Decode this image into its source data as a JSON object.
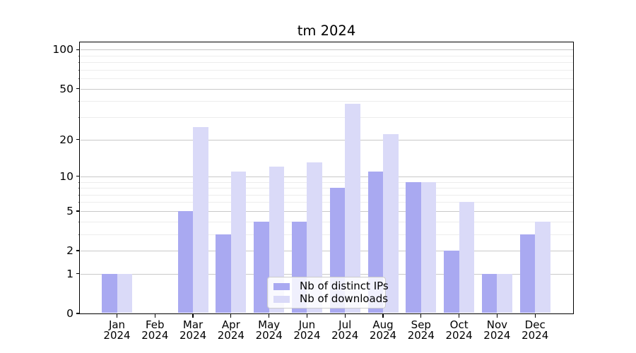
{
  "figure": {
    "background": "#ffffff"
  },
  "chart_data": {
    "type": "bar",
    "title": "tm 2024",
    "categories": [
      "Jan",
      "Feb",
      "Mar",
      "Apr",
      "May",
      "Jun",
      "Jul",
      "Aug",
      "Sep",
      "Oct",
      "Nov",
      "Dec"
    ],
    "category_year": "2024",
    "series": [
      {
        "name": "Nb of distinct IPs",
        "color": "#a9a9f1",
        "values": [
          1,
          0,
          5,
          3,
          4,
          4,
          8,
          11,
          9,
          2,
          1,
          3
        ]
      },
      {
        "name": "Nb of downloads",
        "color": "#dadaf8",
        "values": [
          1,
          0,
          25,
          11,
          12,
          13,
          38,
          22,
          9,
          6,
          1,
          4
        ]
      }
    ],
    "yscale": "log1p",
    "ylim": [
      0,
      114
    ],
    "y_major_ticks": [
      100,
      50,
      20,
      10,
      5,
      2,
      1,
      0
    ],
    "y_minor_gridlines": [
      3,
      4,
      6,
      7,
      8,
      9,
      30,
      40,
      60,
      70,
      80,
      90
    ],
    "grid": "horizontal-only",
    "legend_position": "lower center",
    "colors": {
      "major_grid": "#c9c9c9",
      "minor_grid": "#ededed",
      "axis": "#000000",
      "text": "#000000"
    }
  }
}
